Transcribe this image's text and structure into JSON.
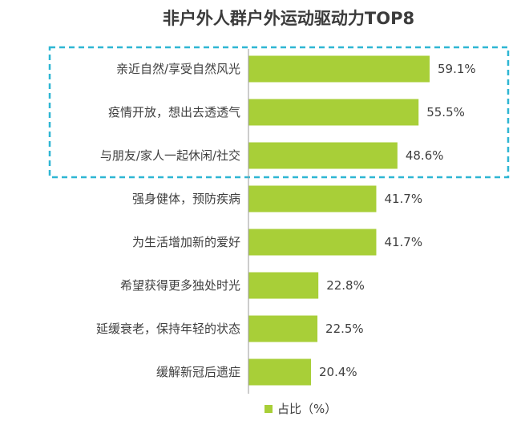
{
  "chart_data": {
    "type": "bar",
    "orientation": "horizontal",
    "title": "非户外人群户外运动驱动力TOP8",
    "categories": [
      "亲近自然/享受自然风光",
      "疫情开放，想出去透透气",
      "与朋友/家人一起休闲/社交",
      "强身健体，预防疾病",
      "为生活增加新的爱好",
      "希望获得更多独处时光",
      "延缓衰老，保持年轻的状态",
      "缓解新冠后遗症"
    ],
    "values": [
      59.1,
      55.5,
      48.6,
      41.7,
      41.7,
      22.8,
      22.5,
      20.4
    ],
    "value_labels": [
      "59.1%",
      "55.5%",
      "48.6%",
      "41.7%",
      "41.7%",
      "22.8%",
      "22.5%",
      "20.4%"
    ],
    "series": [
      {
        "name": "占比（%）",
        "values": [
          59.1,
          55.5,
          48.6,
          41.7,
          41.7,
          22.8,
          22.5,
          20.4
        ]
      }
    ],
    "xlim": [
      0,
      100
    ],
    "grid": false,
    "legend_position": "bottom",
    "highlighted_categories": [
      0,
      1,
      2
    ],
    "colors": {
      "bar": "#a8cf38",
      "highlight_box": "#2eb6d3",
      "axis": "#9a9a9a",
      "title": "#3b3b3b"
    }
  }
}
